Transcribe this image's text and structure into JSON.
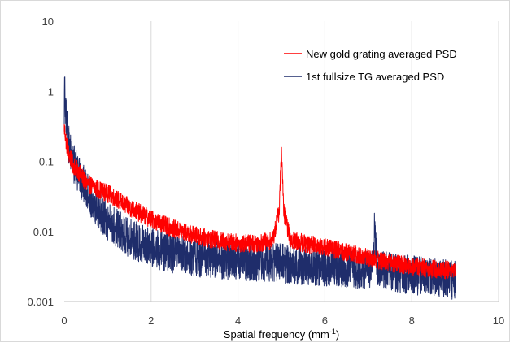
{
  "chart_data": {
    "type": "line",
    "title": "",
    "xlabel": "Spatial frequency (mm",
    "xlabel_sup": "-1",
    "xlabel_close": ")",
    "ylabel": "",
    "xlim": [
      0,
      10
    ],
    "ylim": [
      0.001,
      10
    ],
    "y_scale": "log",
    "grid": "vertical",
    "legend_position": "top-right",
    "x_ticks": [
      "0",
      "2",
      "4",
      "6",
      "8",
      "10"
    ],
    "x_tick_values": [
      0,
      2,
      4,
      6,
      8,
      10
    ],
    "y_ticks": [
      "0.001",
      "0.01",
      "0.1",
      "1",
      "10"
    ],
    "y_tick_values": [
      0.001,
      0.01,
      0.1,
      1,
      10
    ],
    "series": [
      {
        "name": "New gold grating averaged PSD",
        "color": "#ff0000",
        "noise_band": 0.13,
        "x": [
          0,
          0.02,
          0.05,
          0.1,
          0.2,
          0.3,
          0.5,
          0.7,
          1.0,
          1.5,
          2.0,
          2.5,
          3.0,
          3.5,
          4.0,
          4.5,
          4.8,
          4.95,
          5.0,
          5.05,
          5.2,
          5.5,
          6.0,
          6.5,
          7.0,
          7.5,
          8.0,
          8.5,
          9.0
        ],
        "y": [
          0.3,
          0.25,
          0.18,
          0.13,
          0.09,
          0.075,
          0.05,
          0.042,
          0.035,
          0.022,
          0.015,
          0.011,
          0.0088,
          0.0075,
          0.0068,
          0.0068,
          0.0075,
          0.02,
          0.16,
          0.02,
          0.0078,
          0.0068,
          0.006,
          0.005,
          0.0042,
          0.0036,
          0.0032,
          0.0029,
          0.0028
        ]
      },
      {
        "name": "1st fullsize TG averaged PSD",
        "color": "#1f2d6b",
        "noise_band": 0.28,
        "x": [
          0,
          0.01,
          0.03,
          0.05,
          0.1,
          0.2,
          0.3,
          0.5,
          0.7,
          1.0,
          1.5,
          2.0,
          2.5,
          3.0,
          3.5,
          4.0,
          4.5,
          5.0,
          5.5,
          6.0,
          6.5,
          7.0,
          7.1,
          7.15,
          7.2,
          7.5,
          8.0,
          8.5,
          9.0
        ],
        "y": [
          0.5,
          1.6,
          0.6,
          0.35,
          0.18,
          0.1,
          0.07,
          0.04,
          0.025,
          0.014,
          0.008,
          0.0058,
          0.0048,
          0.0043,
          0.004,
          0.0038,
          0.0037,
          0.0035,
          0.0033,
          0.0031,
          0.003,
          0.0028,
          0.0035,
          0.012,
          0.0032,
          0.0026,
          0.0024,
          0.0022,
          0.002
        ]
      }
    ]
  }
}
